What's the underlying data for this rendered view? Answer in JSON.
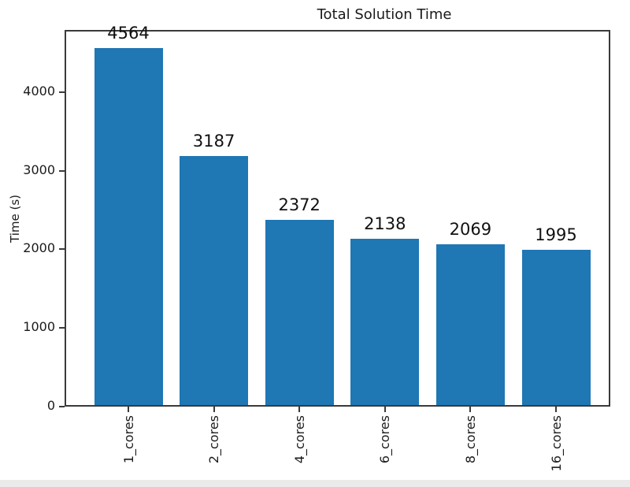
{
  "chart_data": {
    "type": "bar",
    "title": "Total Solution Time",
    "ylabel": "Time (s)",
    "xlabel": "",
    "categories": [
      "1_cores",
      "2_cores",
      "4_cores",
      "6_cores",
      "8_cores",
      "16_cores"
    ],
    "values": [
      4564,
      3187,
      2372,
      2138,
      2069,
      1995
    ],
    "bar_value_labels": [
      "4564",
      "3187",
      "2372",
      "2138",
      "2069",
      "1995"
    ],
    "yticks": [
      0,
      1000,
      2000,
      3000,
      4000
    ],
    "ylim": [
      0,
      4790
    ],
    "x_tick_rotation_deg": 90,
    "grid": false,
    "legend": "none",
    "bar_color": "#1f77b4",
    "axis_color": "#3a3a3a",
    "text_color": "#1a1a1a"
  }
}
